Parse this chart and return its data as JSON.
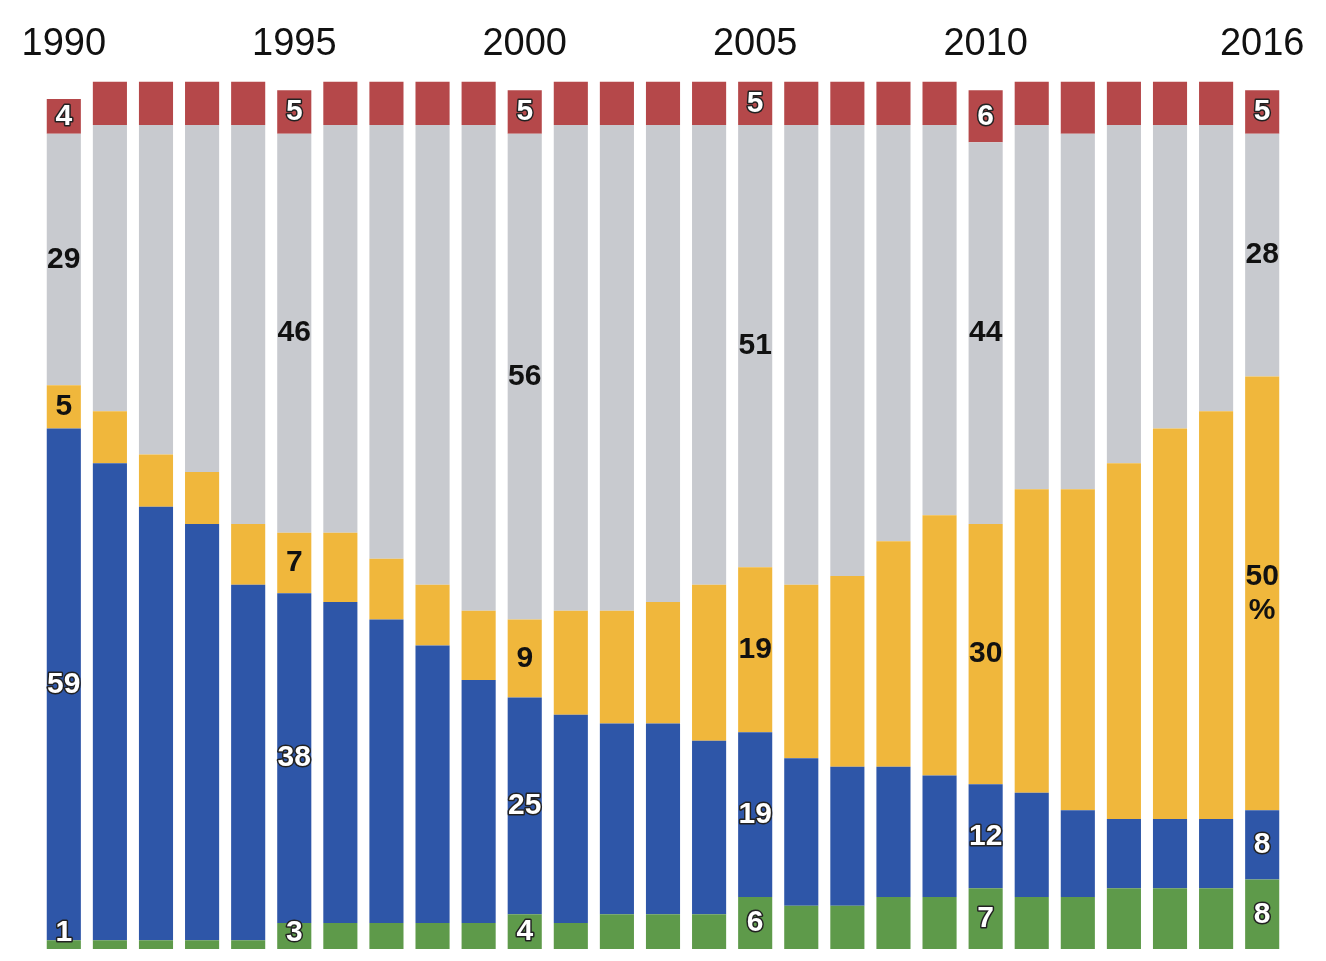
{
  "chart_data": {
    "type": "bar",
    "stacked": true,
    "tick_labels": "x",
    "grid": false,
    "legend": false,
    "categories": [
      "1990",
      null,
      null,
      null,
      null,
      "1995",
      null,
      null,
      null,
      null,
      "2000",
      null,
      null,
      null,
      null,
      "2005",
      null,
      null,
      null,
      null,
      "2010",
      null,
      null,
      null,
      null,
      null,
      "2016"
    ],
    "series": [
      {
        "color": "#5e9a4a",
        "values": [
          1,
          1,
          1,
          1,
          1,
          3,
          3,
          3,
          3,
          3,
          4,
          3,
          4,
          4,
          4,
          6,
          5,
          5,
          6,
          6,
          7,
          6,
          6,
          7,
          7,
          7,
          8
        ],
        "value_labels": [
          "1",
          null,
          null,
          null,
          null,
          "3",
          null,
          null,
          null,
          null,
          "4",
          null,
          null,
          null,
          null,
          "6",
          null,
          null,
          null,
          null,
          "7",
          null,
          null,
          null,
          null,
          null,
          "8"
        ]
      },
      {
        "color": "#2e56a8",
        "values": [
          59,
          55,
          50,
          48,
          41,
          38,
          37,
          35,
          32,
          28,
          25,
          24,
          22,
          22,
          20,
          19,
          17,
          16,
          15,
          14,
          12,
          12,
          10,
          8,
          8,
          8,
          8
        ],
        "value_labels": [
          "59",
          null,
          null,
          null,
          null,
          "38",
          null,
          null,
          null,
          null,
          "25",
          null,
          null,
          null,
          null,
          "19",
          null,
          null,
          null,
          null,
          "12",
          null,
          null,
          null,
          null,
          null,
          "8"
        ]
      },
      {
        "color": "#f0b73c",
        "values": [
          5,
          6,
          6,
          6,
          7,
          7,
          8,
          7,
          7,
          8,
          9,
          12,
          13,
          14,
          18,
          19,
          20,
          22,
          26,
          30,
          30,
          35,
          37,
          41,
          45,
          47,
          50
        ],
        "value_labels": [
          "5",
          null,
          null,
          null,
          null,
          "7",
          null,
          null,
          null,
          null,
          "9",
          null,
          null,
          null,
          null,
          "19",
          null,
          null,
          null,
          null,
          "30",
          null,
          null,
          null,
          null,
          null,
          "50%"
        ]
      },
      {
        "color": "#c8cacf",
        "values": [
          29,
          33,
          38,
          40,
          46,
          46,
          47,
          50,
          53,
          56,
          56,
          56,
          56,
          55,
          53,
          51,
          53,
          52,
          48,
          45,
          44,
          42,
          41,
          39,
          35,
          33,
          28
        ],
        "value_labels": [
          "29",
          null,
          null,
          null,
          null,
          "46",
          null,
          null,
          null,
          null,
          "56",
          null,
          null,
          null,
          null,
          "51",
          null,
          null,
          null,
          null,
          "44",
          null,
          null,
          null,
          null,
          null,
          "28"
        ]
      },
      {
        "color": "#b5484a",
        "values": [
          4,
          5,
          5,
          5,
          5,
          5,
          5,
          5,
          5,
          5,
          5,
          5,
          5,
          5,
          5,
          5,
          5,
          5,
          5,
          5,
          6,
          5,
          6,
          5,
          5,
          5,
          5
        ],
        "value_labels": [
          "4",
          null,
          null,
          null,
          null,
          "5",
          null,
          null,
          null,
          null,
          "5",
          null,
          null,
          null,
          null,
          "5",
          null,
          null,
          null,
          null,
          "6",
          null,
          null,
          null,
          null,
          null,
          "5"
        ]
      }
    ]
  }
}
